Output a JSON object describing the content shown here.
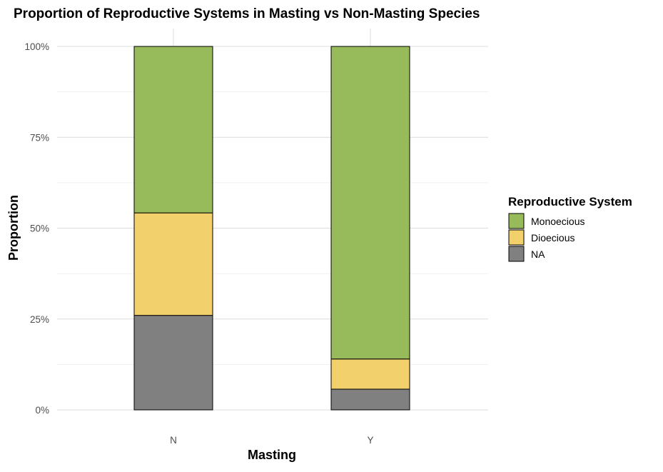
{
  "chart_data": {
    "type": "bar",
    "stacked": true,
    "title": "Proportion of Reproductive Systems in Masting vs Non-Masting Species",
    "xlabel": "Masting",
    "ylabel": "Proportion",
    "categories": [
      "N",
      "Y"
    ],
    "ylim": [
      0,
      1
    ],
    "y_ticks": [
      {
        "value": 0,
        "label": "0%"
      },
      {
        "value": 0.25,
        "label": "25%"
      },
      {
        "value": 0.5,
        "label": "50%"
      },
      {
        "value": 0.75,
        "label": "75%"
      },
      {
        "value": 1,
        "label": "100%"
      }
    ],
    "series": [
      {
        "name": "NA",
        "color": "#808080",
        "values": [
          0.26,
          0.057
        ]
      },
      {
        "name": "Dioecious",
        "color": "#f2d06b",
        "values": [
          0.282,
          0.083
        ]
      },
      {
        "name": "Monoecious",
        "color": "#97ba5a",
        "values": [
          0.458,
          0.86
        ]
      }
    ],
    "legend": {
      "title": "Reproductive System",
      "position": "right",
      "entries": [
        {
          "label": "Monoecious",
          "color": "#97ba5a"
        },
        {
          "label": "Dioecious",
          "color": "#f2d06b"
        },
        {
          "label": "NA",
          "color": "#808080"
        }
      ]
    },
    "grid": true
  }
}
